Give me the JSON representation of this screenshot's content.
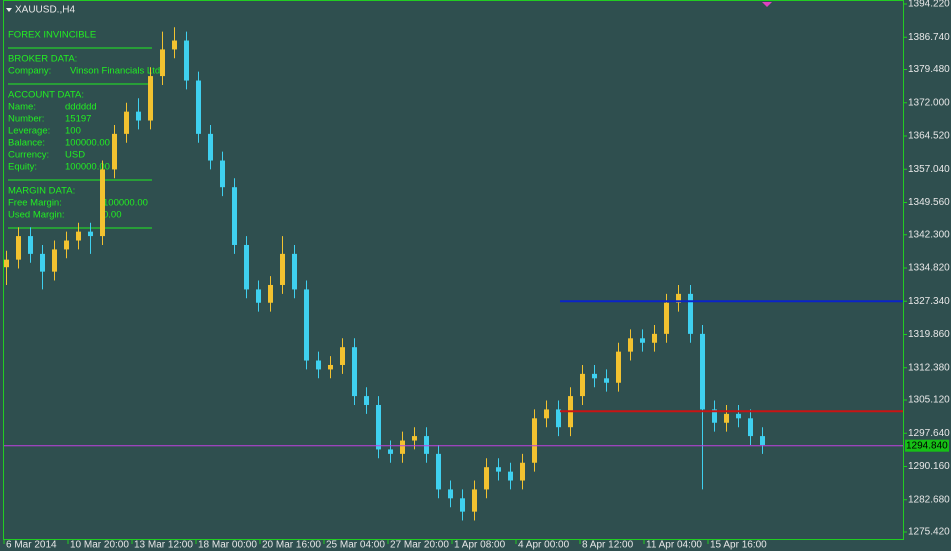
{
  "chart_data": {
    "type": "candlestick",
    "symbol": "XAUUSD.,H4",
    "ylim": [
      1273.62,
      1395.12
    ],
    "yticks": [
      {
        "value": 1394.22,
        "label": "1394.220"
      },
      {
        "value": 1386.74,
        "label": "1386.740"
      },
      {
        "value": 1379.48,
        "label": "1379.480"
      },
      {
        "value": 1372,
        "label": "1372.000"
      },
      {
        "value": 1364.52,
        "label": "1364.520"
      },
      {
        "value": 1357.04,
        "label": "1357.040"
      },
      {
        "value": 1349.56,
        "label": "1349.560"
      },
      {
        "value": 1342.3,
        "label": "1342.300"
      },
      {
        "value": 1334.82,
        "label": "1334.820"
      },
      {
        "value": 1327.34,
        "label": "1327.340"
      },
      {
        "value": 1319.86,
        "label": "1319.860"
      },
      {
        "value": 1312.38,
        "label": "1312.380"
      },
      {
        "value": 1305.12,
        "label": "1305.120"
      },
      {
        "value": 1297.64,
        "label": "1297.640"
      },
      {
        "value": 1290.16,
        "label": "1290.160"
      },
      {
        "value": 1282.68,
        "label": "1282.680"
      },
      {
        "value": 1275.42,
        "label": "1275.420"
      }
    ],
    "x_labels": [
      "6 Mar 2014",
      "10 Mar 20:00",
      "13 Mar 12:00",
      "18 Mar 00:00",
      "20 Mar 16:00",
      "25 Mar 04:00",
      "27 Mar 20:00",
      "1 Apr 08:00",
      "4 Apr 00:00",
      "8 Apr 12:00",
      "11 Apr 04:00",
      "15 Apr 16:00"
    ],
    "up_color": "#f2c230",
    "down_color": "#3fd0ef",
    "ohlc": [
      [
        1335,
        1338.7,
        1331,
        1336.7
      ],
      [
        1336.7,
        1344,
        1334.7,
        1342
      ],
      [
        1342,
        1344,
        1336,
        1338
      ],
      [
        1338,
        1340,
        1330,
        1334
      ],
      [
        1334,
        1341,
        1332,
        1339
      ],
      [
        1339,
        1343,
        1337,
        1341
      ],
      [
        1341,
        1345,
        1339,
        1343
      ],
      [
        1343,
        1345,
        1338,
        1342
      ],
      [
        1342,
        1359,
        1340,
        1357
      ],
      [
        1357,
        1367,
        1355,
        1365
      ],
      [
        1365,
        1372,
        1363,
        1370
      ],
      [
        1370,
        1373,
        1366,
        1368
      ],
      [
        1368,
        1380,
        1366,
        1378
      ],
      [
        1378,
        1388,
        1376,
        1384
      ],
      [
        1384,
        1389,
        1382,
        1386
      ],
      [
        1386,
        1388,
        1375,
        1377
      ],
      [
        1377,
        1379,
        1363,
        1365
      ],
      [
        1365,
        1367,
        1357,
        1359
      ],
      [
        1359,
        1361,
        1351,
        1353
      ],
      [
        1353,
        1355,
        1338,
        1340
      ],
      [
        1340,
        1342,
        1328,
        1330
      ],
      [
        1330,
        1332,
        1325,
        1327
      ],
      [
        1327,
        1333,
        1325,
        1331
      ],
      [
        1331,
        1342,
        1329,
        1338
      ],
      [
        1338,
        1340,
        1328,
        1330
      ],
      [
        1330,
        1332,
        1312,
        1314
      ],
      [
        1314,
        1316,
        1310,
        1312
      ],
      [
        1312,
        1315,
        1310,
        1313
      ],
      [
        1313,
        1319,
        1311,
        1317
      ],
      [
        1317,
        1319,
        1304,
        1306
      ],
      [
        1306,
        1308,
        1302,
        1304
      ],
      [
        1304,
        1306,
        1292,
        1294
      ],
      [
        1294,
        1296,
        1291,
        1293
      ],
      [
        1293,
        1298,
        1291,
        1296
      ],
      [
        1296,
        1299,
        1294,
        1297
      ],
      [
        1297,
        1299,
        1291,
        1293
      ],
      [
        1293,
        1295,
        1283,
        1285
      ],
      [
        1285,
        1287,
        1281,
        1283
      ],
      [
        1283,
        1285,
        1278,
        1280
      ],
      [
        1280,
        1287,
        1278,
        1285
      ],
      [
        1285,
        1292,
        1283,
        1290
      ],
      [
        1290,
        1292,
        1287,
        1289
      ],
      [
        1289,
        1291,
        1285,
        1287
      ],
      [
        1287,
        1293,
        1285,
        1291
      ],
      [
        1291,
        1303,
        1289,
        1301
      ],
      [
        1301,
        1305,
        1299,
        1303
      ],
      [
        1303,
        1305,
        1297,
        1299
      ],
      [
        1299,
        1308,
        1297,
        1306
      ],
      [
        1306,
        1313,
        1304,
        1311
      ],
      [
        1311,
        1313,
        1308,
        1310
      ],
      [
        1310,
        1312,
        1307,
        1309
      ],
      [
        1309,
        1318,
        1307,
        1316
      ],
      [
        1316,
        1321,
        1314,
        1319
      ],
      [
        1319,
        1321,
        1316,
        1318
      ],
      [
        1318,
        1322,
        1316,
        1320
      ],
      [
        1320,
        1329,
        1318,
        1327
      ],
      [
        1327,
        1331,
        1325,
        1329
      ],
      [
        1329,
        1331,
        1318,
        1320
      ],
      [
        1320,
        1322,
        1285,
        1303
      ],
      [
        1303,
        1305,
        1298,
        1300
      ],
      [
        1300,
        1304,
        1298,
        1302
      ],
      [
        1302,
        1304,
        1299,
        1301
      ],
      [
        1301,
        1303,
        1295,
        1297
      ],
      [
        1297,
        1299,
        1293,
        1295
      ]
    ],
    "levels": [
      {
        "value": 1327.34,
        "color": "#0a24c8"
      },
      {
        "value": 1302.6,
        "color": "#c81414"
      }
    ],
    "bid": {
      "value": 1294.84,
      "label": "1294.840",
      "color": "#c040e0"
    }
  },
  "panel": {
    "title": "FOREX INVINCIBLE",
    "broker_heading": "BROKER DATA:",
    "broker_rows": [
      [
        "Company:",
        "Vinson Financials Ltd"
      ]
    ],
    "account_heading": "ACCOUNT DATA:",
    "account_rows": [
      [
        "Name:",
        "dddddd"
      ],
      [
        "Number:",
        "15197"
      ],
      [
        "Leverage:",
        "100"
      ],
      [
        "Balance:",
        "100000.00"
      ],
      [
        "Currency:",
        "USD"
      ],
      [
        "Equity:",
        "100000.00"
      ]
    ],
    "margin_heading": "MARGIN DATA:",
    "margin_rows": [
      [
        "Free Margin:",
        "100000.00"
      ],
      [
        "Used Margin:",
        "0.00"
      ]
    ]
  }
}
